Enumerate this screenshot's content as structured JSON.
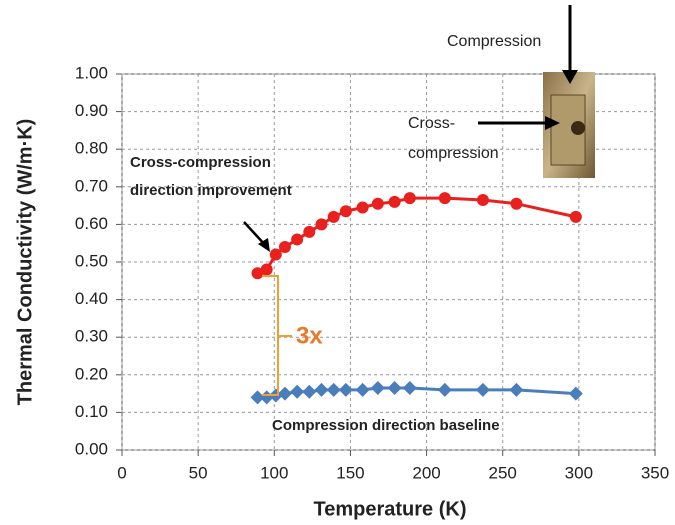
{
  "chart_data": {
    "type": "line",
    "xlabel": "Temperature (K)",
    "ylabel": "Thermal Conductivity (W/m·K)",
    "xlim": [
      0,
      350
    ],
    "xticks": [
      0,
      50,
      100,
      150,
      200,
      250,
      300,
      350
    ],
    "ylim": [
      0,
      1
    ],
    "yticks": [
      {
        "value": 0,
        "label": "0.00"
      },
      {
        "value": 0.1,
        "label": "0.10"
      },
      {
        "value": 0.2,
        "label": "0.20"
      },
      {
        "value": 0.3,
        "label": "0.30"
      },
      {
        "value": 0.4,
        "label": "0.40"
      },
      {
        "value": 0.5,
        "label": "0.50"
      },
      {
        "value": 0.6,
        "label": "0.60"
      },
      {
        "value": 0.7,
        "label": "0.70"
      },
      {
        "value": 0.8,
        "label": "0.80"
      },
      {
        "value": 0.9,
        "label": "0.90"
      },
      {
        "value": 1,
        "label": "1.00"
      }
    ],
    "grid": true,
    "series": [
      {
        "color": "#e8201e",
        "marker": "circle",
        "x": [
          89,
          95,
          101,
          107,
          115,
          123,
          131,
          139,
          147,
          158,
          168,
          179,
          189,
          212,
          237,
          259,
          298
        ],
        "values": [
          0.47,
          0.48,
          0.52,
          0.54,
          0.56,
          0.58,
          0.6,
          0.62,
          0.635,
          0.645,
          0.655,
          0.66,
          0.67,
          0.67,
          0.665,
          0.655,
          0.62
        ]
      },
      {
        "color": "#4a7ebb",
        "marker": "diamond",
        "x": [
          89,
          95,
          101,
          107,
          115,
          123,
          131,
          139,
          147,
          158,
          168,
          179,
          189,
          212,
          237,
          259,
          298
        ],
        "values": [
          0.14,
          0.14,
          0.145,
          0.15,
          0.155,
          0.155,
          0.16,
          0.16,
          0.16,
          0.16,
          0.165,
          0.165,
          0.165,
          0.16,
          0.16,
          0.16,
          0.15
        ]
      }
    ],
    "annotations": {
      "improvement": [
        "Cross-compression",
        "direction improvement"
      ],
      "baseline": "Compression direction baseline",
      "ratio": "3x",
      "compression": "Compression",
      "cross_compression": [
        "Cross-",
        "compression"
      ]
    }
  }
}
